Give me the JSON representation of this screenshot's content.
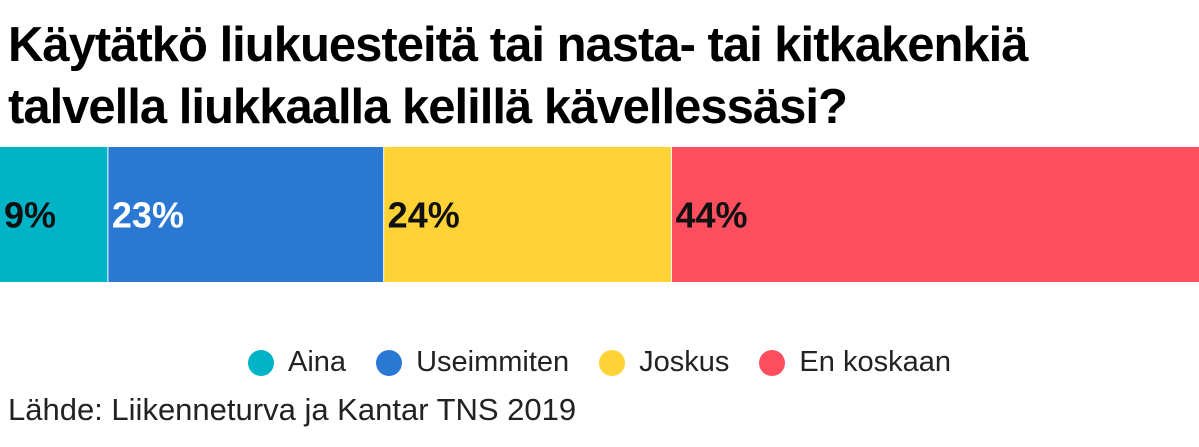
{
  "chart_data": {
    "type": "bar",
    "orientation": "horizontal-stacked-100",
    "title": "Käytätkö liukuesteitä tai nasta- tai kitkakenkiä talvella liukkaalla kelillä kävellessäsi?",
    "source": "Lähde: Liikenneturva ja Kantar TNS 2019",
    "legend_position": "bottom-center",
    "grid": false,
    "series": [
      {
        "name": "Aina",
        "value": 9,
        "label": "9%",
        "color": "#00B4C8",
        "label_color": "#111111"
      },
      {
        "name": "Useimmiten",
        "value": 23,
        "label": "23%",
        "color": "#2A78D2",
        "label_color": "#ffffff"
      },
      {
        "name": "Joskus",
        "value": 24,
        "label": "24%",
        "color": "#FFD335",
        "label_color": "#111111"
      },
      {
        "name": "En koskaan",
        "value": 44,
        "label": "44%",
        "color": "#FF4F5E",
        "label_color": "#111111"
      }
    ]
  }
}
